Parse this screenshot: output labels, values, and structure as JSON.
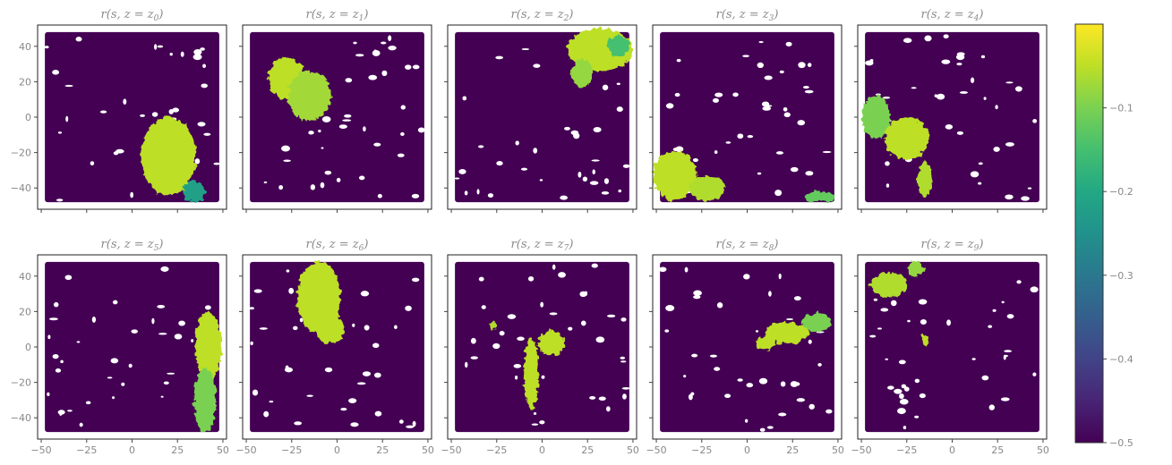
{
  "chart_data": {
    "type": "scatter",
    "colormap": "viridis",
    "background_value": -0.5,
    "xlim": [
      -52,
      52
    ],
    "ylim": [
      -52,
      52
    ],
    "xticks": [
      -50,
      -25,
      0,
      25,
      50
    ],
    "yticks": [
      40,
      20,
      0,
      -20,
      -40
    ],
    "xtick_labels": [
      "−50",
      "−25",
      "0",
      "25",
      "50"
    ],
    "ytick_labels": [
      "40",
      "20",
      "0",
      "−20",
      "−40"
    ],
    "panels": [
      {
        "title_main": "r(s, z = z",
        "title_sub": "0",
        "title_end": ")",
        "blobs": [
          {
            "cx": 20,
            "cy": -22,
            "rx": 15,
            "ry": 22,
            "value": -0.05
          },
          {
            "cx": 34,
            "cy": -42,
            "rx": 6,
            "ry": 6,
            "value": -0.22
          }
        ]
      },
      {
        "title_main": "r(s, z = z",
        "title_sub": "1",
        "title_end": ")",
        "blobs": [
          {
            "cx": -28,
            "cy": 22,
            "rx": 10,
            "ry": 12,
            "value": -0.05
          },
          {
            "cx": -15,
            "cy": 12,
            "rx": 12,
            "ry": 14,
            "value": -0.07
          }
        ]
      },
      {
        "title_main": "r(s, z = z",
        "title_sub": "2",
        "title_end": ")",
        "blobs": [
          {
            "cx": 32,
            "cy": 38,
            "rx": 18,
            "ry": 12,
            "value": -0.05
          },
          {
            "cx": 42,
            "cy": 40,
            "rx": 6,
            "ry": 6,
            "value": -0.15
          },
          {
            "cx": 22,
            "cy": 25,
            "rx": 6,
            "ry": 8,
            "value": -0.08
          }
        ]
      },
      {
        "title_main": "r(s, z = z",
        "title_sub": "3",
        "title_end": ")",
        "blobs": [
          {
            "cx": -40,
            "cy": -33,
            "rx": 12,
            "ry": 14,
            "value": -0.05
          },
          {
            "cx": -22,
            "cy": -40,
            "rx": 10,
            "ry": 7,
            "value": -0.06
          },
          {
            "cx": 40,
            "cy": -45,
            "rx": 8,
            "ry": 3,
            "value": -0.12
          }
        ]
      },
      {
        "title_main": "r(s, z = z",
        "title_sub": "4",
        "title_end": ")",
        "blobs": [
          {
            "cx": -42,
            "cy": 0,
            "rx": 8,
            "ry": 12,
            "value": -0.1
          },
          {
            "cx": -25,
            "cy": -12,
            "rx": 12,
            "ry": 12,
            "value": -0.05
          },
          {
            "cx": -15,
            "cy": -35,
            "rx": 4,
            "ry": 10,
            "value": -0.06
          }
        ]
      },
      {
        "title_main": "r(s, z = z",
        "title_sub": "5",
        "title_end": ")",
        "blobs": [
          {
            "cx": 42,
            "cy": 0,
            "rx": 7,
            "ry": 20,
            "value": -0.05
          },
          {
            "cx": 40,
            "cy": -30,
            "rx": 6,
            "ry": 18,
            "value": -0.1
          }
        ]
      },
      {
        "title_main": "r(s, z = z",
        "title_sub": "6",
        "title_end": ")",
        "blobs": [
          {
            "cx": -10,
            "cy": 28,
            "rx": 12,
            "ry": 20,
            "value": -0.05
          },
          {
            "cx": -4,
            "cy": 10,
            "rx": 8,
            "ry": 8,
            "value": -0.05
          }
        ]
      },
      {
        "title_main": "r(s, z = z",
        "title_sub": "7",
        "title_end": ")",
        "blobs": [
          {
            "cx": -6,
            "cy": -15,
            "rx": 4,
            "ry": 20,
            "value": -0.05
          },
          {
            "cx": 5,
            "cy": 2,
            "rx": 7,
            "ry": 7,
            "value": -0.05
          },
          {
            "cx": -27,
            "cy": 12,
            "rx": 2,
            "ry": 2,
            "value": -0.06
          }
        ]
      },
      {
        "title_main": "r(s, z = z",
        "title_sub": "8",
        "title_end": ")",
        "blobs": [
          {
            "cx": 22,
            "cy": 8,
            "rx": 12,
            "ry": 6,
            "value": -0.05
          },
          {
            "cx": 38,
            "cy": 14,
            "rx": 8,
            "ry": 5,
            "value": -0.1
          },
          {
            "cx": 10,
            "cy": 2,
            "rx": 5,
            "ry": 4,
            "value": -0.05
          }
        ]
      },
      {
        "title_main": "r(s, z = z",
        "title_sub": "9",
        "title_end": ")",
        "blobs": [
          {
            "cx": -35,
            "cy": 35,
            "rx": 10,
            "ry": 7,
            "value": -0.06
          },
          {
            "cx": -20,
            "cy": 44,
            "rx": 5,
            "ry": 4,
            "value": -0.08
          },
          {
            "cx": -15,
            "cy": 4,
            "rx": 2,
            "ry": 3,
            "value": -0.05
          }
        ]
      }
    ],
    "colorbar": {
      "range": [
        -0.5,
        0.0
      ],
      "ticks": [
        -0.1,
        -0.2,
        -0.3,
        -0.4,
        -0.5
      ],
      "tick_labels": [
        "−0.1",
        "−0.2",
        "−0.3",
        "−0.4",
        "−0.5"
      ]
    }
  }
}
